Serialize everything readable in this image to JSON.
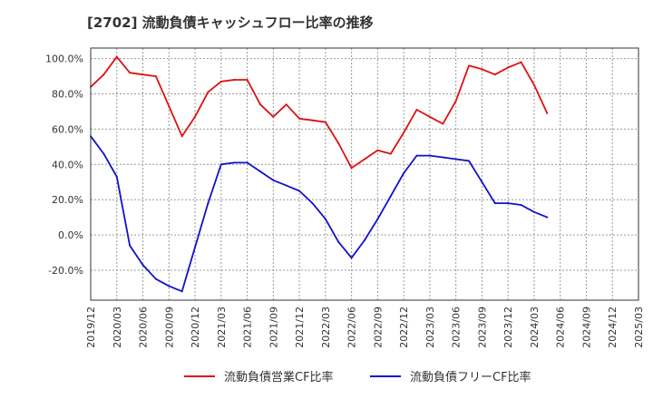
{
  "chart_data": {
    "type": "line",
    "title": "[2702]  流動負債キャッシュフロー比率の推移",
    "xlabel": "",
    "ylabel": "",
    "ylim": [
      -37,
      106
    ],
    "yticks": [
      -20,
      0,
      20,
      40,
      60,
      80,
      100
    ],
    "ytick_labels": [
      "-20.0%",
      "0.0%",
      "20.0%",
      "40.0%",
      "60.0%",
      "80.0%",
      "100.0%"
    ],
    "xticks": [
      "2019/12",
      "2020/03",
      "2020/06",
      "2020/09",
      "2020/12",
      "2021/03",
      "2021/06",
      "2021/09",
      "2021/12",
      "2022/03",
      "2022/06",
      "2022/09",
      "2022/12",
      "2023/03",
      "2023/06",
      "2023/09",
      "2023/12",
      "2024/03",
      "2024/06",
      "2024/09",
      "2024/12",
      "2025/03"
    ],
    "grid": true,
    "legend_position": "bottom-center",
    "series": [
      {
        "name": "流動負債営業CF比率",
        "color": "#dd1111",
        "values": [
          84,
          91,
          101,
          92,
          91,
          90,
          73,
          56,
          67,
          81,
          87,
          88,
          88,
          74,
          67,
          74,
          66,
          65,
          64,
          52,
          38,
          43,
          48,
          46,
          58,
          71,
          67,
          63,
          76,
          96,
          94,
          91,
          95,
          98,
          85,
          69
        ]
      },
      {
        "name": "流動負債フリーCF比率",
        "color": "#1111cc",
        "values": [
          56,
          46,
          33,
          -6,
          -17,
          -25,
          -29,
          -32,
          -7,
          18,
          40,
          41,
          41,
          36,
          31,
          28,
          25,
          18,
          9,
          -4,
          -13,
          -3,
          9,
          22,
          35,
          45,
          45,
          44,
          43,
          42,
          30,
          18,
          18,
          17,
          13,
          10
        ]
      }
    ]
  }
}
